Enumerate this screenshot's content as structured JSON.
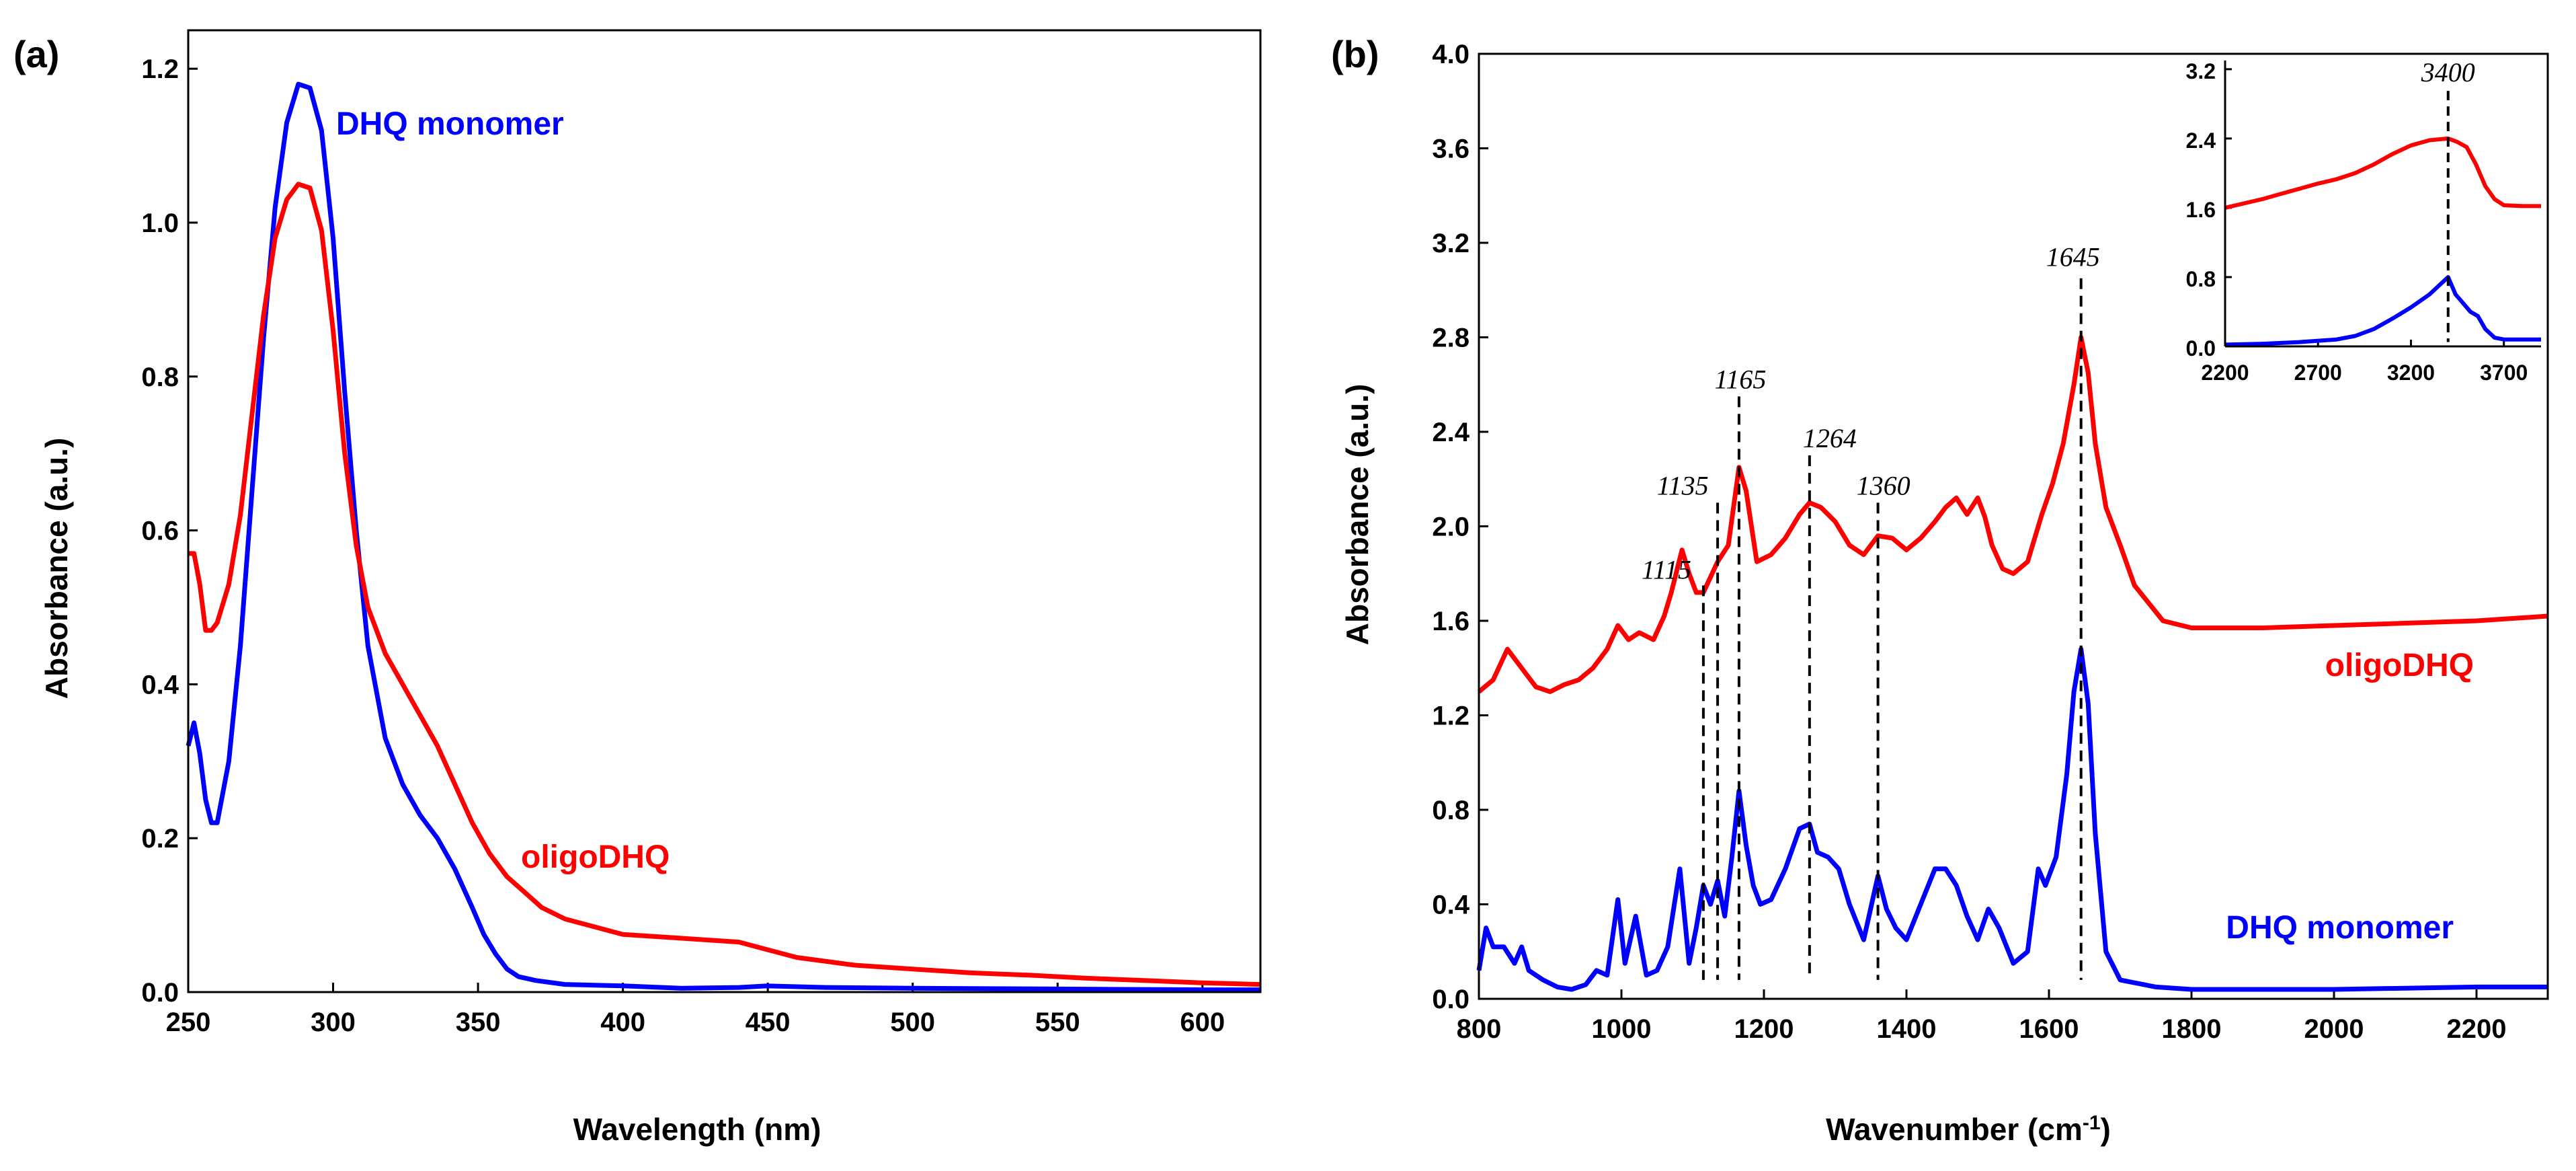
{
  "chart_data": [
    {
      "type": "line",
      "panel": "(a)",
      "title": "",
      "xlabel": "Wavelength (nm)",
      "ylabel": "Absorbance (a.u.)",
      "xlim": [
        250,
        620
      ],
      "ylim": [
        0,
        1.25
      ],
      "xticks": [
        250,
        300,
        350,
        400,
        450,
        500,
        550,
        600
      ],
      "yticks": [
        0.0,
        0.2,
        0.4,
        0.6,
        0.8,
        1.0,
        1.2
      ],
      "series": [
        {
          "name": "DHQ monomer",
          "color": "#0000ff",
          "x": [
            250,
            252,
            254,
            256,
            258,
            260,
            264,
            268,
            272,
            276,
            280,
            284,
            288,
            292,
            296,
            300,
            304,
            308,
            312,
            318,
            324,
            330,
            336,
            342,
            348,
            352,
            356,
            360,
            364,
            370,
            380,
            400,
            420,
            440,
            450,
            470,
            500,
            550,
            600,
            620
          ],
          "y": [
            0.32,
            0.35,
            0.31,
            0.25,
            0.22,
            0.22,
            0.3,
            0.45,
            0.65,
            0.85,
            1.02,
            1.13,
            1.18,
            1.175,
            1.12,
            0.98,
            0.78,
            0.6,
            0.45,
            0.33,
            0.27,
            0.23,
            0.2,
            0.16,
            0.11,
            0.075,
            0.05,
            0.03,
            0.02,
            0.015,
            0.01,
            0.008,
            0.005,
            0.006,
            0.008,
            0.006,
            0.005,
            0.004,
            0.003,
            0.003
          ]
        },
        {
          "name": "oligoDHQ",
          "color": "#ff0000",
          "x": [
            250,
            252,
            254,
            256,
            258,
            260,
            264,
            268,
            272,
            276,
            280,
            284,
            288,
            292,
            296,
            300,
            304,
            308,
            312,
            318,
            324,
            330,
            336,
            342,
            348,
            354,
            360,
            366,
            372,
            380,
            390,
            400,
            420,
            440,
            450,
            460,
            480,
            500,
            520,
            540,
            560,
            580,
            600,
            620
          ],
          "y": [
            0.57,
            0.57,
            0.53,
            0.47,
            0.47,
            0.48,
            0.53,
            0.62,
            0.75,
            0.88,
            0.98,
            1.03,
            1.05,
            1.045,
            0.99,
            0.86,
            0.7,
            0.58,
            0.5,
            0.44,
            0.4,
            0.36,
            0.32,
            0.27,
            0.22,
            0.18,
            0.15,
            0.13,
            0.11,
            0.095,
            0.085,
            0.075,
            0.07,
            0.065,
            0.055,
            0.045,
            0.035,
            0.03,
            0.025,
            0.022,
            0.018,
            0.015,
            0.012,
            0.01
          ]
        }
      ],
      "annotations": [
        {
          "text": "DHQ monomer",
          "color": "#0000ff"
        },
        {
          "text": "oligoDHQ",
          "color": "#ff0000"
        }
      ]
    },
    {
      "type": "line",
      "panel": "(b)",
      "title": "",
      "xlabel": "Wavenumber (cm",
      "xlabel_sup": "-1",
      "xlabel_end": ")",
      "ylabel": "Absorbance (a.u.)",
      "xlim": [
        800,
        2300
      ],
      "ylim": [
        0,
        4.0
      ],
      "xticks": [
        800,
        1000,
        1200,
        1400,
        1600,
        1800,
        2000,
        2200
      ],
      "yticks": [
        0.0,
        0.4,
        0.8,
        1.2,
        1.6,
        2.0,
        2.4,
        2.8,
        3.2,
        3.6,
        4.0
      ],
      "series": [
        {
          "name": "oligoDHQ",
          "color": "#ff0000",
          "x": [
            800,
            820,
            840,
            860,
            880,
            900,
            920,
            940,
            960,
            980,
            995,
            1010,
            1025,
            1045,
            1060,
            1070,
            1085,
            1095,
            1105,
            1115,
            1135,
            1150,
            1165,
            1175,
            1190,
            1210,
            1230,
            1250,
            1264,
            1280,
            1300,
            1320,
            1340,
            1360,
            1380,
            1400,
            1420,
            1440,
            1455,
            1470,
            1485,
            1500,
            1510,
            1520,
            1535,
            1550,
            1570,
            1590,
            1605,
            1620,
            1635,
            1645,
            1655,
            1665,
            1680,
            1700,
            1720,
            1760,
            1800,
            1900,
            2000,
            2100,
            2200,
            2300
          ],
          "y": [
            1.3,
            1.35,
            1.48,
            1.4,
            1.32,
            1.3,
            1.33,
            1.35,
            1.4,
            1.48,
            1.58,
            1.52,
            1.55,
            1.52,
            1.62,
            1.72,
            1.9,
            1.8,
            1.72,
            1.72,
            1.85,
            1.92,
            2.25,
            2.15,
            1.85,
            1.88,
            1.95,
            2.05,
            2.1,
            2.08,
            2.02,
            1.92,
            1.88,
            1.96,
            1.95,
            1.9,
            1.95,
            2.02,
            2.08,
            2.12,
            2.05,
            2.12,
            2.04,
            1.92,
            1.82,
            1.8,
            1.85,
            2.05,
            2.18,
            2.35,
            2.6,
            2.8,
            2.65,
            2.35,
            2.08,
            1.92,
            1.75,
            1.6,
            1.57,
            1.57,
            1.58,
            1.59,
            1.6,
            1.62
          ]
        },
        {
          "name": "DHQ monomer",
          "color": "#0000ff",
          "x": [
            800,
            810,
            820,
            835,
            850,
            860,
            870,
            890,
            910,
            930,
            950,
            965,
            980,
            995,
            1005,
            1020,
            1035,
            1050,
            1065,
            1082,
            1095,
            1105,
            1115,
            1125,
            1135,
            1145,
            1155,
            1165,
            1175,
            1185,
            1195,
            1210,
            1230,
            1250,
            1264,
            1275,
            1290,
            1305,
            1320,
            1340,
            1360,
            1372,
            1385,
            1400,
            1420,
            1440,
            1455,
            1470,
            1485,
            1500,
            1515,
            1530,
            1550,
            1570,
            1585,
            1595,
            1610,
            1625,
            1635,
            1645,
            1655,
            1665,
            1680,
            1700,
            1750,
            1800,
            1900,
            2000,
            2100,
            2200,
            2300
          ],
          "y": [
            0.12,
            0.3,
            0.22,
            0.22,
            0.15,
            0.22,
            0.12,
            0.08,
            0.05,
            0.04,
            0.06,
            0.12,
            0.1,
            0.42,
            0.15,
            0.35,
            0.1,
            0.12,
            0.22,
            0.55,
            0.15,
            0.3,
            0.48,
            0.4,
            0.5,
            0.35,
            0.6,
            0.88,
            0.65,
            0.48,
            0.4,
            0.42,
            0.55,
            0.72,
            0.74,
            0.62,
            0.6,
            0.55,
            0.4,
            0.25,
            0.52,
            0.38,
            0.3,
            0.25,
            0.4,
            0.55,
            0.55,
            0.48,
            0.35,
            0.25,
            0.38,
            0.3,
            0.15,
            0.2,
            0.55,
            0.48,
            0.6,
            0.95,
            1.3,
            1.48,
            1.25,
            0.7,
            0.2,
            0.08,
            0.05,
            0.04,
            0.04,
            0.04,
            0.045,
            0.05,
            0.05
          ]
        }
      ],
      "annotations": [
        {
          "text": "oligoDHQ",
          "color": "#ff0000"
        },
        {
          "text": "DHQ monomer",
          "color": "#0000ff"
        }
      ],
      "peak_markers": [
        {
          "x": 1115,
          "label": "1115"
        },
        {
          "x": 1135,
          "label": "1135"
        },
        {
          "x": 1165,
          "label": "1165"
        },
        {
          "x": 1264,
          "label": "1264"
        },
        {
          "x": 1360,
          "label": "1360"
        },
        {
          "x": 1645,
          "label": "1645"
        }
      ],
      "inset": {
        "type": "line",
        "xlim": [
          2200,
          3900
        ],
        "ylim": [
          0,
          3.3
        ],
        "xticks": [
          2200,
          2700,
          3200,
          3700
        ],
        "yticks": [
          0.0,
          0.8,
          1.6,
          2.4,
          3.2
        ],
        "series": [
          {
            "name": "oligoDHQ",
            "color": "#ff0000",
            "x": [
              2200,
              2300,
              2400,
              2500,
              2600,
              2700,
              2800,
              2900,
              3000,
              3100,
              3200,
              3300,
              3400,
              3450,
              3500,
              3550,
              3600,
              3650,
              3700,
              3800,
              3900
            ],
            "y": [
              1.6,
              1.65,
              1.7,
              1.76,
              1.82,
              1.88,
              1.93,
              2.0,
              2.1,
              2.22,
              2.32,
              2.38,
              2.4,
              2.36,
              2.3,
              2.1,
              1.85,
              1.7,
              1.63,
              1.62,
              1.62
            ]
          },
          {
            "name": "DHQ monomer",
            "color": "#0000ff",
            "x": [
              2200,
              2400,
              2600,
              2800,
              2900,
              3000,
              3100,
              3200,
              3300,
              3350,
              3400,
              3440,
              3480,
              3520,
              3560,
              3600,
              3650,
              3700,
              3800,
              3900
            ],
            "y": [
              0.02,
              0.03,
              0.05,
              0.08,
              0.12,
              0.2,
              0.32,
              0.45,
              0.6,
              0.7,
              0.8,
              0.6,
              0.5,
              0.4,
              0.35,
              0.2,
              0.1,
              0.08,
              0.08,
              0.08
            ]
          }
        ],
        "peak_markers": [
          {
            "x": 3400,
            "label": "3400"
          }
        ]
      }
    }
  ]
}
